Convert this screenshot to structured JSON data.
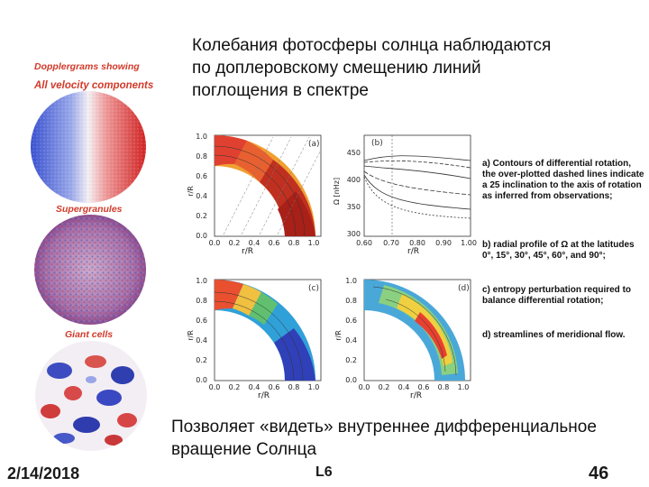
{
  "slide": {
    "title_lines": [
      "Колебания фотосферы солнца наблюдаются",
      "по доплеровскому смещению линий",
      "поглощения в спектре"
    ],
    "caption_lines": [
      "Позволяет «видеть» внутреннее дифференциальное",
      "вращение Солнца"
    ],
    "footer": {
      "date": "2/14/2018",
      "label": "L6",
      "page": "46"
    }
  },
  "left_column": {
    "label_1": "Dopplergrams showing",
    "label_2": "All velocity components",
    "label_3": "Supergranules",
    "label_4": "Giant cells"
  },
  "panels": {
    "a": {
      "tag": "(a)"
    },
    "b": {
      "tag": "(b)"
    },
    "c": {
      "tag": "(c)"
    },
    "d": {
      "tag": "(d)"
    },
    "x_axis_label": "r/R",
    "y_axis_label_quarter": "r/R",
    "y_axis_label_profile": "Ω [nHz]",
    "quarter_ticks": [
      "0.0",
      "0.2",
      "0.4",
      "0.6",
      "0.8",
      "1.0"
    ],
    "profile_x_ticks": [
      "0.60",
      "0.70",
      "0.80",
      "0.90",
      "1.00"
    ],
    "profile_y_ticks": [
      "300",
      "350",
      "400",
      "450"
    ]
  },
  "annotations": [
    "a) Contours of differential rotation, the over-plotted dashed lines indicate a 25 inclination to the axis of rotation as inferred from observations;",
    "b) radial profile of Ω at the latitudes 0°, 15°, 30°, 45°, 60°, and 90°;",
    "c) entropy perturbation required to balance differential rotation;",
    "d) streamlines of meridional flow."
  ]
}
